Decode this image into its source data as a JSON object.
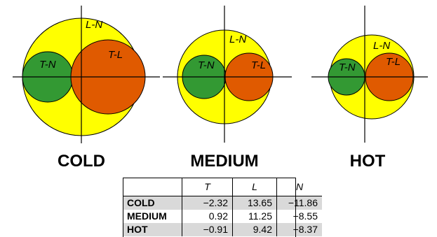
{
  "diagram": {
    "groups": [
      {
        "condition": "COLD",
        "outer_label": "L-N",
        "left_label": "T-N",
        "right_label": "T-L"
      },
      {
        "condition": "MEDIUM",
        "outer_label": "L-N",
        "left_label": "T-N",
        "right_label": "T-L"
      },
      {
        "condition": "HOT",
        "outer_label": "L-N",
        "left_label": "T-N",
        "right_label": "T-L"
      }
    ],
    "colors": {
      "outer": "#ffff00",
      "left": "#339933",
      "right": "#e05a00",
      "stroke": "#000000"
    }
  },
  "table": {
    "headers": [
      "",
      "T",
      "L",
      "N"
    ],
    "rows": [
      {
        "label": "COLD",
        "values": [
          "−2.32",
          "13.65",
          "−11.86"
        ]
      },
      {
        "label": "MEDIUM",
        "values": [
          "0.92",
          "11.25",
          "−8.55"
        ]
      },
      {
        "label": "HOT",
        "values": [
          "−0.91",
          "9.42",
          "−8.37"
        ]
      }
    ]
  }
}
